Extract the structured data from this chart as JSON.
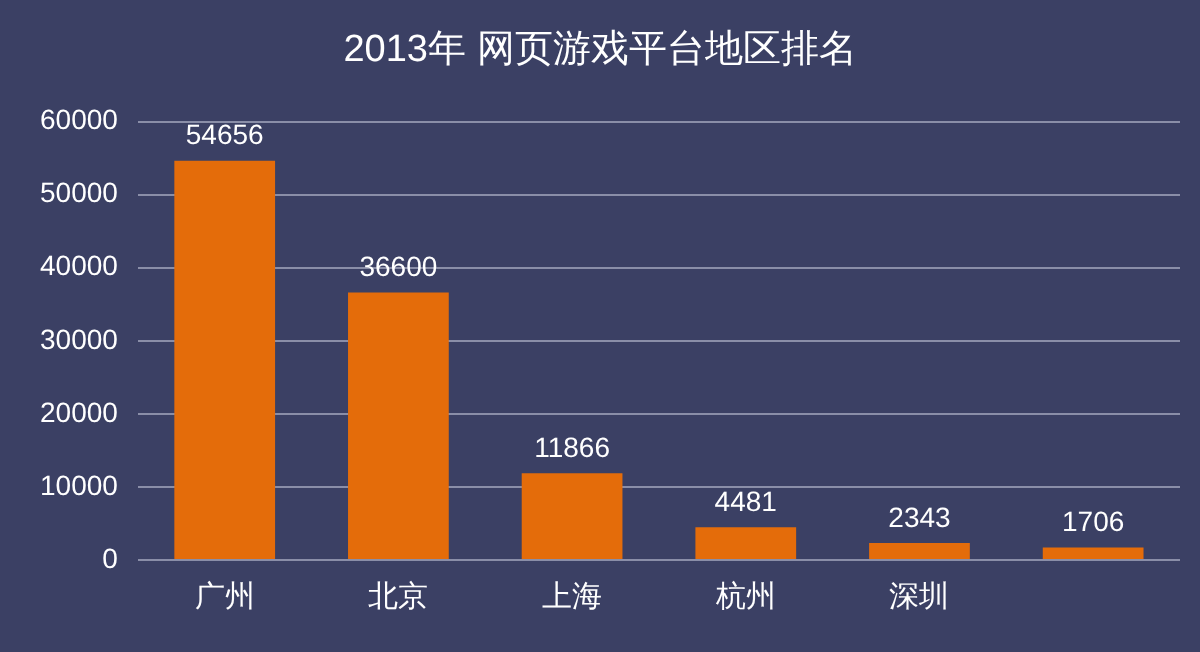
{
  "chart_data": {
    "type": "bar",
    "title": "2013年 网页游戏平台地区排名",
    "categories": [
      "广州",
      "北京",
      "上海",
      "杭州",
      "深圳",
      null
    ],
    "values": [
      54656,
      36600,
      11866,
      4481,
      2343,
      1706
    ],
    "color": "#e46c0a",
    "ylim": [
      0,
      60000
    ],
    "yticks": [
      0,
      10000,
      20000,
      30000,
      40000,
      50000,
      60000
    ],
    "grid": "y",
    "data_labels": true
  }
}
